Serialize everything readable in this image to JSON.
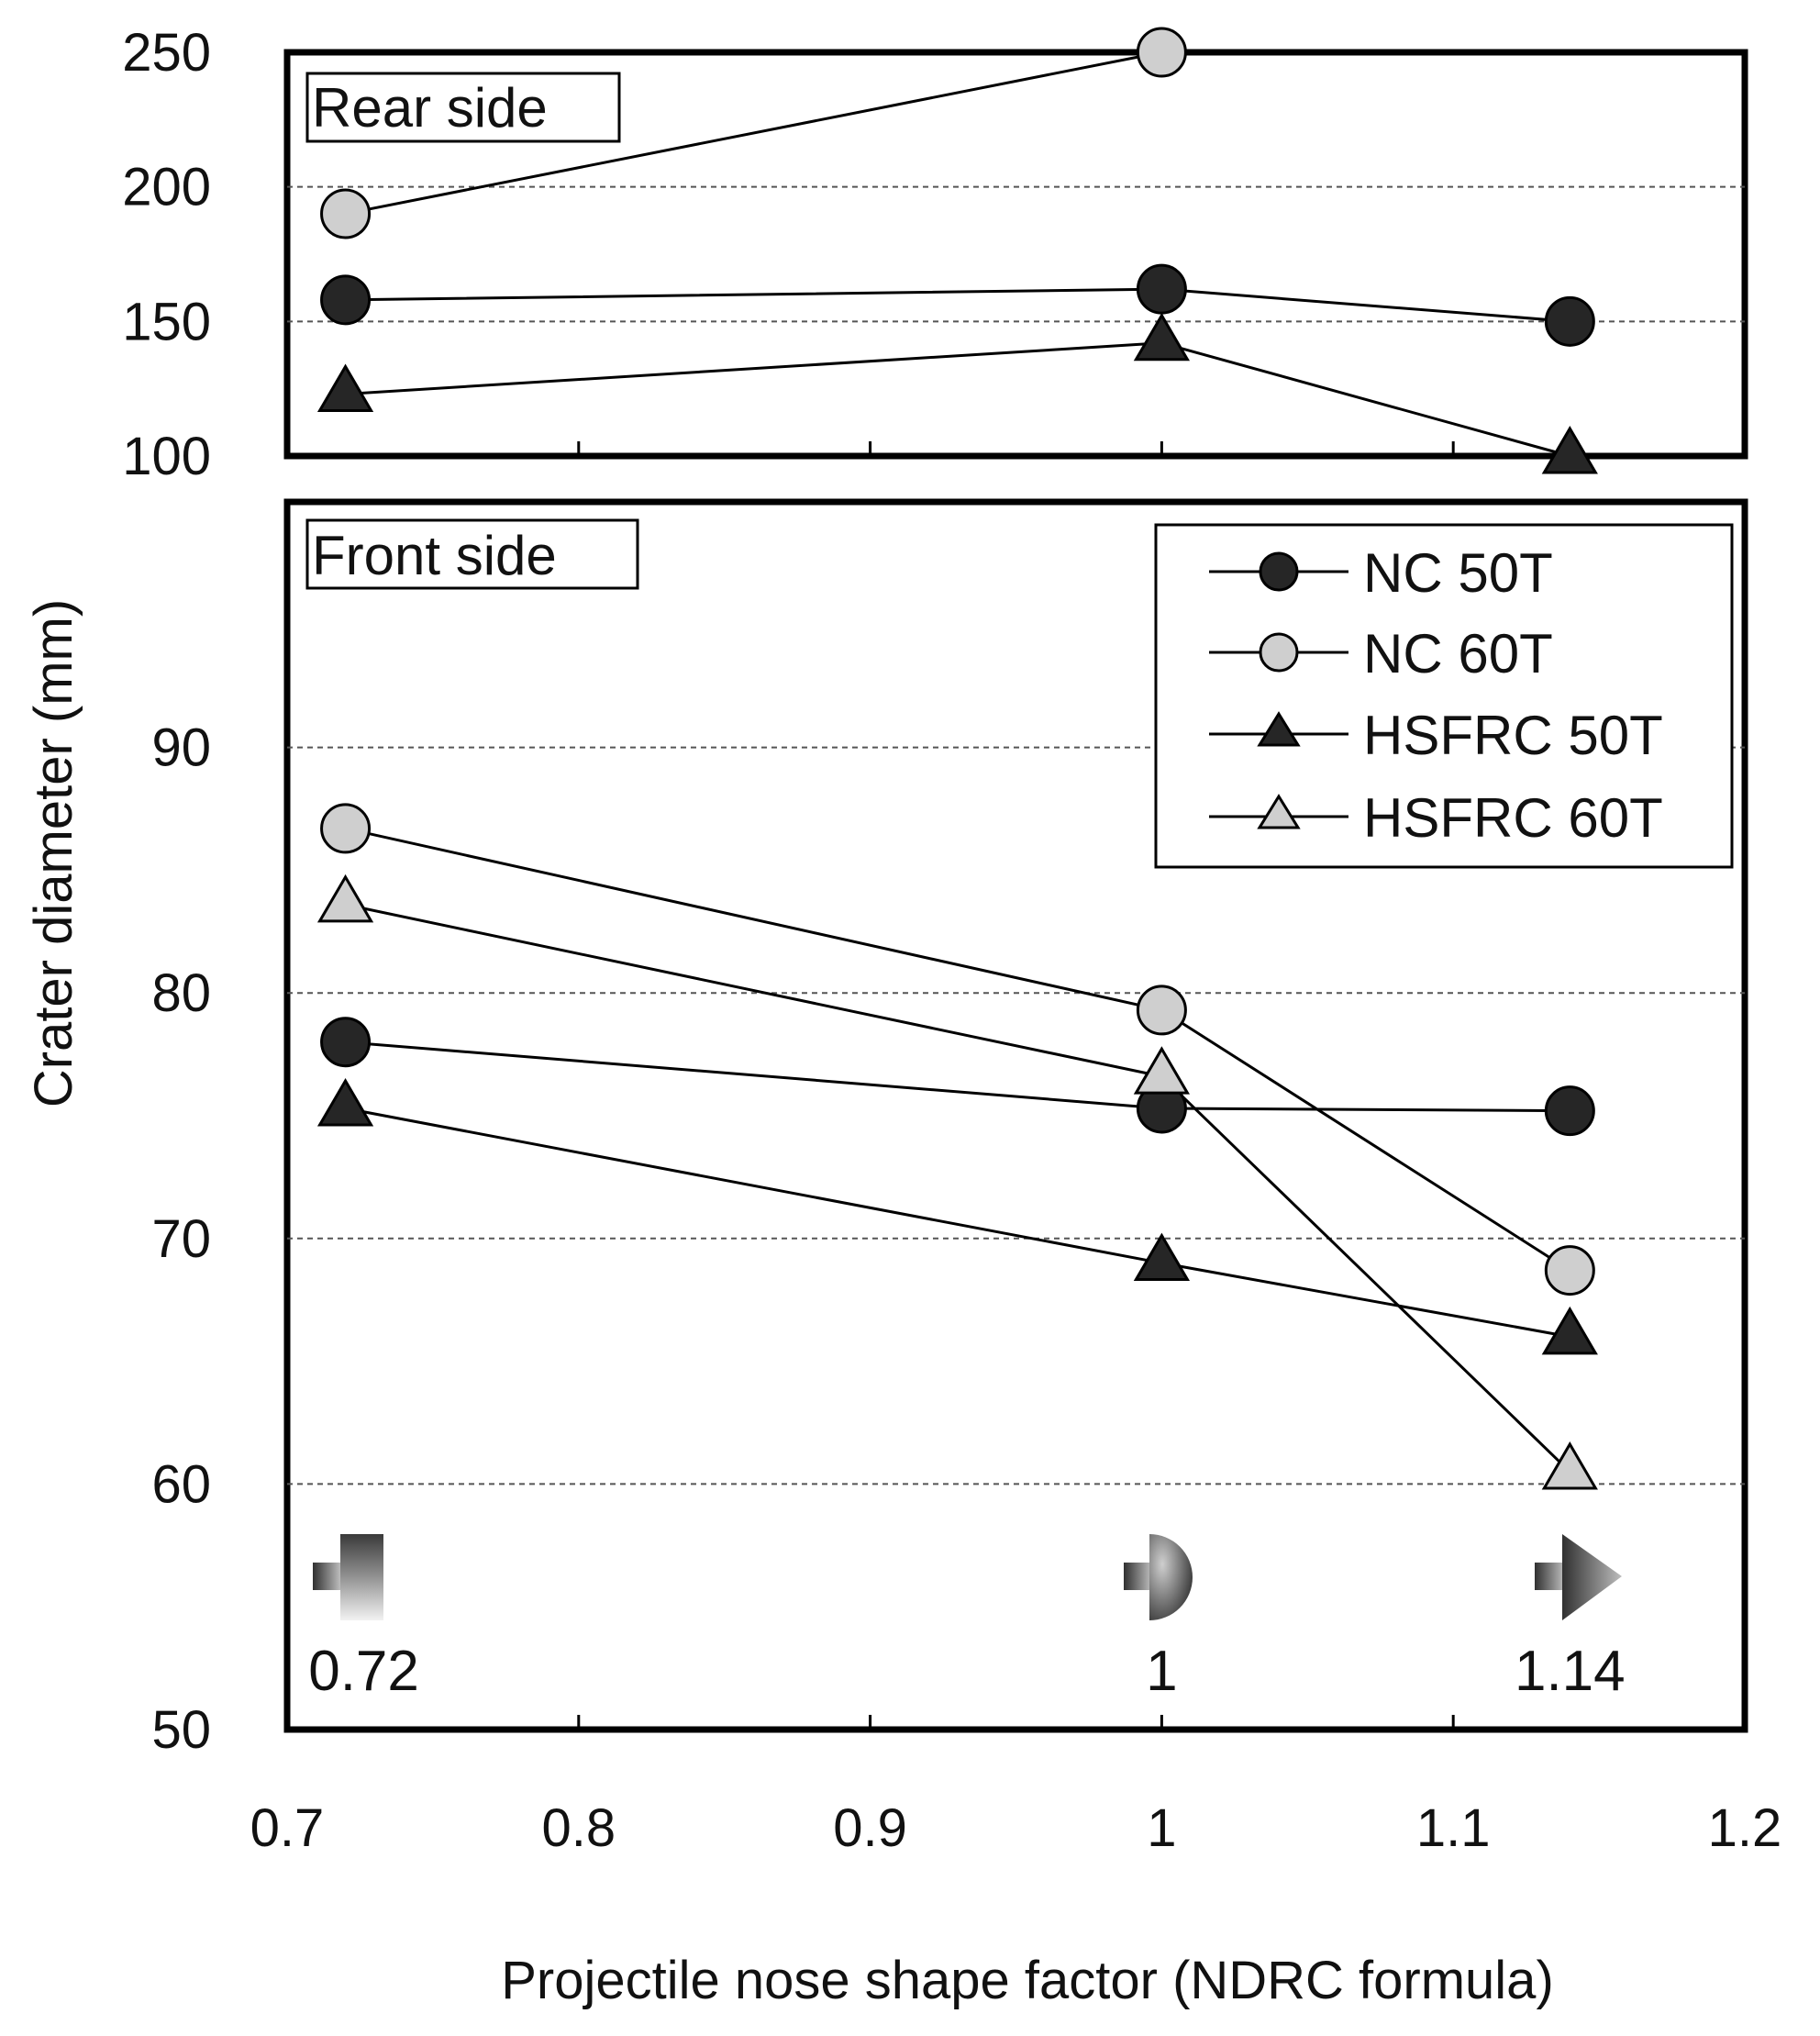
{
  "chart_data": {
    "type": "line",
    "xlabel": "Projectile nose shape factor (NDRC formula)",
    "ylabel": "Crater diameter  (mm)",
    "xlim": [
      0.7,
      1.2
    ],
    "x_ticks": [
      "0.7",
      "0.8",
      "0.9",
      "1",
      "1.1",
      "1.2"
    ],
    "legend_position": "top-right",
    "series_styles": [
      {
        "name": "NC 50T",
        "marker": "circle",
        "fill": "#262626"
      },
      {
        "name": "NC 60T",
        "marker": "circle",
        "fill": "#cfcfcf"
      },
      {
        "name": "HSFRC 50T",
        "marker": "triangle",
        "fill": "#262626"
      },
      {
        "name": "HSFRC 60T",
        "marker": "triangle",
        "fill": "#cfcfcf"
      }
    ],
    "panels": [
      {
        "label": "Rear side",
        "ylim": [
          100,
          250
        ],
        "y_ticks": [
          "250",
          "200",
          "150",
          "100"
        ],
        "grid": "dashed horizontal",
        "series": [
          {
            "name": "NC 50T",
            "x": [
              0.72,
              1,
              1.14
            ],
            "y": [
              158,
              162,
              150
            ]
          },
          {
            "name": "NC 60T",
            "x": [
              0.72,
              1
            ],
            "y": [
              190,
              250
            ]
          },
          {
            "name": "HSFRC 50T",
            "x": [
              0.72,
              1,
              1.14
            ],
            "y": [
              123,
              142,
              100
            ]
          }
        ]
      },
      {
        "label": "Front side",
        "ylim": [
          50,
          100
        ],
        "y_ticks": [
          "90",
          "80",
          "70",
          "60",
          "50"
        ],
        "grid": "dashed horizontal",
        "series": [
          {
            "name": "NC 50T",
            "x": [
              0.72,
              1,
              1.14
            ],
            "y": [
              78,
              75.3,
              75.2
            ]
          },
          {
            "name": "NC 60T",
            "x": [
              0.72,
              1,
              1.14
            ],
            "y": [
              86.7,
              79.3,
              68.7
            ]
          },
          {
            "name": "HSFRC 50T",
            "x": [
              0.72,
              1,
              1.14
            ],
            "y": [
              75.3,
              69,
              66
            ]
          },
          {
            "name": "HSFRC 60T",
            "x": [
              0.72,
              1,
              1.14
            ],
            "y": [
              83.6,
              76.6,
              60.5
            ]
          }
        ],
        "nose_shape_labels": [
          {
            "x": 0.72,
            "label": "0.72",
            "shape": "flat"
          },
          {
            "x": 1,
            "label": "1",
            "shape": "hemispherical"
          },
          {
            "x": 1.14,
            "label": "1.14",
            "shape": "ogive"
          }
        ]
      }
    ]
  }
}
